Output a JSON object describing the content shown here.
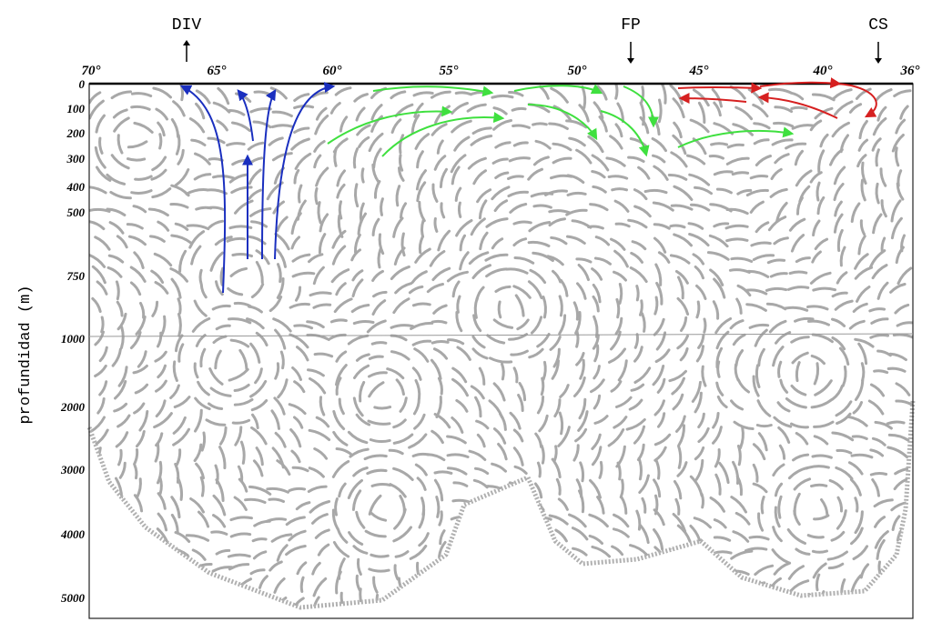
{
  "top_markers": [
    "DIV",
    "FP",
    "CS"
  ],
  "x_axis": {
    "labels": [
      "70°",
      "65°",
      "60°",
      "55°",
      "50°",
      "45°",
      "40°",
      "36°"
    ]
  },
  "y_axis": {
    "title": "profundidad (m)",
    "labels": [
      "0",
      "100",
      "200",
      "300",
      "400",
      "500",
      "750",
      "1000",
      "2000",
      "3000",
      "4000",
      "5000"
    ]
  }
}
